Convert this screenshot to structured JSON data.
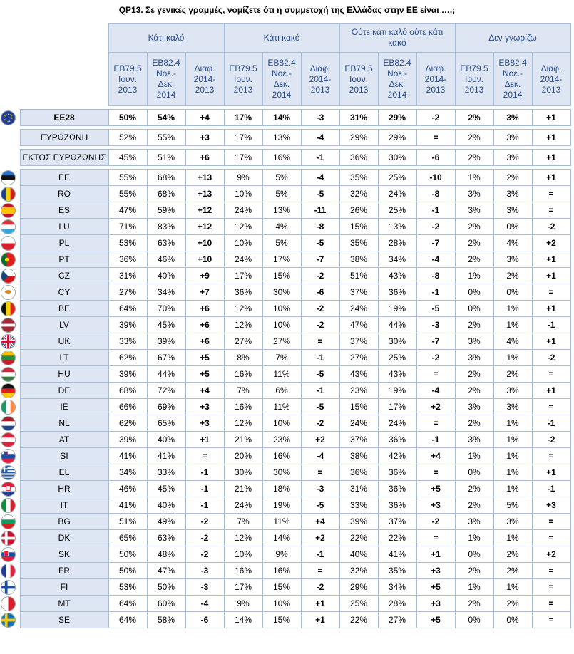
{
  "title": "QP13. Σε γενικές γραμμές, νομίζετε ότι η συμμετοχή της Ελλάδας στην ΕΕ είναι ….;",
  "groups": [
    "Κάτι καλό",
    "Κάτι κακό",
    "Ούτε κάτι καλό ούτε κάτι κακό",
    "Δεν γνωρίζω"
  ],
  "subheaders": [
    "EB79.5 Ιουν. 2013",
    "EB82.4 Νοε.- Δεκ. 2014",
    "Διαφ. 2014- 2013"
  ],
  "colors": {
    "header_bg": "#dde6f2",
    "border": "#a9bcd6",
    "header_text": "#2b4b8a"
  },
  "summary_rows": [
    {
      "label": "EE28",
      "flag": "eu-flag-icon",
      "bold": true,
      "vals": [
        "50%",
        "54%",
        "+4",
        "17%",
        "14%",
        "-3",
        "31%",
        "29%",
        "-2",
        "2%",
        "3%",
        "+1"
      ]
    },
    {
      "label": "ΕΥΡΩΖΩΝΗ",
      "flag": "",
      "bold": false,
      "vals": [
        "52%",
        "55%",
        "+3",
        "17%",
        "13%",
        "-4",
        "29%",
        "29%",
        "=",
        "2%",
        "3%",
        "+1"
      ]
    },
    {
      "label": "ΕΚΤΟΣ ΕΥΡΩΖΩΝΗΣ",
      "flag": "",
      "bold": false,
      "vals": [
        "45%",
        "51%",
        "+6",
        "17%",
        "16%",
        "-1",
        "36%",
        "30%",
        "-6",
        "2%",
        "3%",
        "+1"
      ]
    }
  ],
  "country_rows": [
    {
      "label": "EE",
      "flag": "estonia-flag-icon",
      "vals": [
        "55%",
        "68%",
        "+13",
        "9%",
        "5%",
        "-4",
        "35%",
        "25%",
        "-10",
        "1%",
        "2%",
        "+1"
      ]
    },
    {
      "label": "RO",
      "flag": "romania-flag-icon",
      "vals": [
        "55%",
        "68%",
        "+13",
        "10%",
        "5%",
        "-5",
        "32%",
        "24%",
        "-8",
        "3%",
        "3%",
        "="
      ]
    },
    {
      "label": "ES",
      "flag": "spain-flag-icon",
      "vals": [
        "47%",
        "59%",
        "+12",
        "24%",
        "13%",
        "-11",
        "26%",
        "25%",
        "-1",
        "3%",
        "3%",
        "="
      ]
    },
    {
      "label": "LU",
      "flag": "luxembourg-flag-icon",
      "vals": [
        "71%",
        "83%",
        "+12",
        "12%",
        "4%",
        "-8",
        "15%",
        "13%",
        "-2",
        "2%",
        "0%",
        "-2"
      ]
    },
    {
      "label": "PL",
      "flag": "poland-flag-icon",
      "vals": [
        "53%",
        "63%",
        "+10",
        "10%",
        "5%",
        "-5",
        "35%",
        "28%",
        "-7",
        "2%",
        "4%",
        "+2"
      ]
    },
    {
      "label": "PT",
      "flag": "portugal-flag-icon",
      "vals": [
        "36%",
        "46%",
        "+10",
        "24%",
        "17%",
        "-7",
        "38%",
        "34%",
        "-4",
        "2%",
        "3%",
        "+1"
      ]
    },
    {
      "label": "CZ",
      "flag": "czechia-flag-icon",
      "vals": [
        "31%",
        "40%",
        "+9",
        "17%",
        "15%",
        "-2",
        "51%",
        "43%",
        "-8",
        "1%",
        "2%",
        "+1"
      ]
    },
    {
      "label": "CY",
      "flag": "cyprus-flag-icon",
      "vals": [
        "27%",
        "34%",
        "+7",
        "36%",
        "30%",
        "-6",
        "37%",
        "36%",
        "-1",
        "0%",
        "0%",
        "="
      ]
    },
    {
      "label": "BE",
      "flag": "belgium-flag-icon",
      "vals": [
        "64%",
        "70%",
        "+6",
        "12%",
        "10%",
        "-2",
        "24%",
        "19%",
        "-5",
        "0%",
        "1%",
        "+1"
      ]
    },
    {
      "label": "LV",
      "flag": "latvia-flag-icon",
      "vals": [
        "39%",
        "45%",
        "+6",
        "12%",
        "10%",
        "-2",
        "47%",
        "44%",
        "-3",
        "2%",
        "1%",
        "-1"
      ]
    },
    {
      "label": "UK",
      "flag": "uk-flag-icon",
      "vals": [
        "33%",
        "39%",
        "+6",
        "27%",
        "27%",
        "=",
        "37%",
        "30%",
        "-7",
        "3%",
        "4%",
        "+1"
      ]
    },
    {
      "label": "LT",
      "flag": "lithuania-flag-icon",
      "vals": [
        "62%",
        "67%",
        "+5",
        "8%",
        "7%",
        "-1",
        "27%",
        "25%",
        "-2",
        "3%",
        "1%",
        "-2"
      ]
    },
    {
      "label": "HU",
      "flag": "hungary-flag-icon",
      "vals": [
        "39%",
        "44%",
        "+5",
        "16%",
        "11%",
        "-5",
        "43%",
        "43%",
        "=",
        "2%",
        "2%",
        "="
      ]
    },
    {
      "label": "DE",
      "flag": "germany-flag-icon",
      "vals": [
        "68%",
        "72%",
        "+4",
        "7%",
        "6%",
        "-1",
        "23%",
        "19%",
        "-4",
        "2%",
        "3%",
        "+1"
      ]
    },
    {
      "label": "IE",
      "flag": "ireland-flag-icon",
      "vals": [
        "66%",
        "69%",
        "+3",
        "16%",
        "11%",
        "-5",
        "15%",
        "17%",
        "+2",
        "3%",
        "3%",
        "="
      ]
    },
    {
      "label": "NL",
      "flag": "netherlands-flag-icon",
      "vals": [
        "62%",
        "65%",
        "+3",
        "12%",
        "10%",
        "-2",
        "24%",
        "24%",
        "=",
        "2%",
        "1%",
        "-1"
      ]
    },
    {
      "label": "AT",
      "flag": "austria-flag-icon",
      "vals": [
        "39%",
        "40%",
        "+1",
        "21%",
        "23%",
        "+2",
        "37%",
        "36%",
        "-1",
        "3%",
        "1%",
        "-2"
      ]
    },
    {
      "label": "SI",
      "flag": "slovenia-flag-icon",
      "vals": [
        "41%",
        "41%",
        "=",
        "20%",
        "16%",
        "-4",
        "38%",
        "42%",
        "+4",
        "1%",
        "1%",
        "="
      ]
    },
    {
      "label": "EL",
      "flag": "greece-flag-icon",
      "vals": [
        "34%",
        "33%",
        "-1",
        "30%",
        "30%",
        "=",
        "36%",
        "36%",
        "=",
        "0%",
        "1%",
        "+1"
      ]
    },
    {
      "label": "HR",
      "flag": "croatia-flag-icon",
      "vals": [
        "46%",
        "45%",
        "-1",
        "21%",
        "18%",
        "-3",
        "31%",
        "36%",
        "+5",
        "2%",
        "1%",
        "-1"
      ]
    },
    {
      "label": "IT",
      "flag": "italy-flag-icon",
      "vals": [
        "41%",
        "40%",
        "-1",
        "24%",
        "19%",
        "-5",
        "33%",
        "36%",
        "+3",
        "2%",
        "5%",
        "+3"
      ]
    },
    {
      "label": "BG",
      "flag": "bulgaria-flag-icon",
      "vals": [
        "51%",
        "49%",
        "-2",
        "7%",
        "11%",
        "+4",
        "39%",
        "37%",
        "-2",
        "3%",
        "3%",
        "="
      ]
    },
    {
      "label": "DK",
      "flag": "denmark-flag-icon",
      "vals": [
        "65%",
        "63%",
        "-2",
        "12%",
        "14%",
        "+2",
        "22%",
        "22%",
        "=",
        "1%",
        "1%",
        "="
      ]
    },
    {
      "label": "SK",
      "flag": "slovakia-flag-icon",
      "vals": [
        "50%",
        "48%",
        "-2",
        "10%",
        "9%",
        "-1",
        "40%",
        "41%",
        "+1",
        "0%",
        "2%",
        "+2"
      ]
    },
    {
      "label": "FR",
      "flag": "france-flag-icon",
      "vals": [
        "50%",
        "47%",
        "-3",
        "16%",
        "16%",
        "=",
        "32%",
        "35%",
        "+3",
        "2%",
        "2%",
        "="
      ]
    },
    {
      "label": "FI",
      "flag": "finland-flag-icon",
      "vals": [
        "53%",
        "50%",
        "-3",
        "17%",
        "15%",
        "-2",
        "29%",
        "34%",
        "+5",
        "1%",
        "1%",
        "="
      ]
    },
    {
      "label": "MT",
      "flag": "malta-flag-icon",
      "vals": [
        "64%",
        "60%",
        "-4",
        "9%",
        "10%",
        "+1",
        "25%",
        "28%",
        "+3",
        "2%",
        "2%",
        "="
      ]
    },
    {
      "label": "SE",
      "flag": "sweden-flag-icon",
      "vals": [
        "64%",
        "58%",
        "-6",
        "14%",
        "15%",
        "+1",
        "22%",
        "27%",
        "+5",
        "0%",
        "0%",
        "="
      ]
    }
  ]
}
